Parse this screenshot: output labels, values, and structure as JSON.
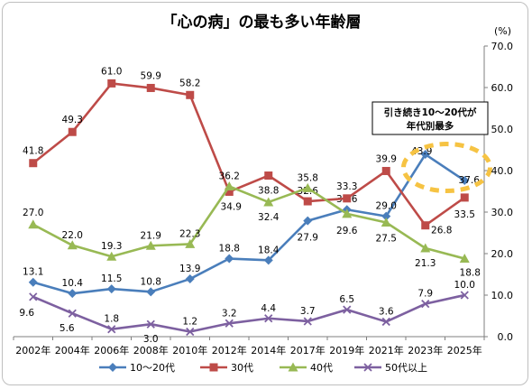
{
  "chart_data": {
    "type": "line",
    "title": "「心の病」の最も多い年齢層",
    "ylabel": "(%)",
    "xlabel": "",
    "ylim": [
      0,
      70
    ],
    "yticks": [
      "0.0",
      "10.0",
      "20.0",
      "30.0",
      "40.0",
      "50.0",
      "60.0",
      "70.0"
    ],
    "categories": [
      "2002年",
      "2004年",
      "2006年",
      "2008年",
      "2010年",
      "2012年",
      "2014年",
      "2017年",
      "2019年",
      "2021年",
      "2023年",
      "2025年"
    ],
    "series": [
      {
        "name": "10～20代",
        "color": "#4a7ebb",
        "marker": "diamond",
        "values": [
          13.1,
          10.4,
          11.5,
          10.8,
          13.9,
          18.8,
          18.4,
          27.9,
          30.6,
          29.0,
          43.9,
          37.6
        ]
      },
      {
        "name": "30代",
        "color": "#be4b48",
        "marker": "square",
        "values": [
          41.8,
          49.3,
          61.0,
          59.9,
          58.2,
          34.9,
          38.8,
          32.6,
          33.3,
          39.9,
          26.8,
          33.5
        ]
      },
      {
        "name": "40代",
        "color": "#98b954",
        "marker": "triangle",
        "values": [
          27.0,
          22.0,
          19.3,
          21.9,
          22.3,
          36.2,
          32.4,
          35.8,
          29.6,
          27.5,
          21.3,
          18.8
        ]
      },
      {
        "name": "50代以上",
        "color": "#7d60a0",
        "marker": "x",
        "values": [
          9.6,
          5.6,
          1.8,
          3.0,
          1.2,
          3.2,
          4.4,
          3.7,
          6.5,
          3.6,
          7.9,
          10.0
        ]
      }
    ],
    "annotation": {
      "line1": "引き続き10～20代が",
      "line2": "年代別最多"
    },
    "grid": false,
    "legend": "bottom"
  }
}
